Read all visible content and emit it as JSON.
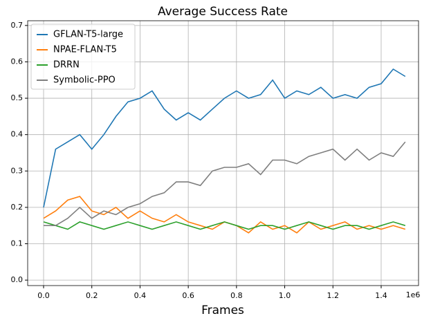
{
  "chart_data": {
    "type": "line",
    "title": "Average Success Rate",
    "x_label": "Frames",
    "x_offset_label": "1e6",
    "x": [
      0,
      0.05,
      0.1,
      0.15,
      0.2,
      0.25,
      0.3,
      0.35,
      0.4,
      0.45,
      0.5,
      0.55,
      0.6,
      0.65,
      0.7,
      0.75,
      0.8,
      0.85,
      0.9,
      0.95,
      1.0,
      1.05,
      1.1,
      1.15,
      1.2,
      1.25,
      1.3,
      1.35,
      1.4,
      1.45,
      1.5
    ],
    "series": [
      {
        "name": "GFLAN-T5-large",
        "color": "#1f77b4",
        "values": [
          0.2,
          0.36,
          0.38,
          0.4,
          0.36,
          0.4,
          0.45,
          0.49,
          0.5,
          0.52,
          0.47,
          0.44,
          0.46,
          0.44,
          0.47,
          0.5,
          0.52,
          0.5,
          0.51,
          0.55,
          0.5,
          0.52,
          0.51,
          0.53,
          0.5,
          0.51,
          0.5,
          0.53,
          0.54,
          0.58,
          0.56
        ]
      },
      {
        "name": "NPAE-FLAN-T5",
        "color": "#ff7f0e",
        "values": [
          0.17,
          0.19,
          0.22,
          0.23,
          0.19,
          0.18,
          0.2,
          0.17,
          0.19,
          0.17,
          0.16,
          0.18,
          0.16,
          0.15,
          0.14,
          0.16,
          0.15,
          0.13,
          0.16,
          0.14,
          0.15,
          0.13,
          0.16,
          0.14,
          0.15,
          0.16,
          0.14,
          0.15,
          0.14,
          0.15,
          0.14
        ]
      },
      {
        "name": "DRRN",
        "color": "#2ca02c",
        "values": [
          0.16,
          0.15,
          0.14,
          0.16,
          0.15,
          0.14,
          0.15,
          0.16,
          0.15,
          0.14,
          0.15,
          0.16,
          0.15,
          0.14,
          0.15,
          0.16,
          0.15,
          0.14,
          0.15,
          0.15,
          0.14,
          0.15,
          0.16,
          0.15,
          0.14,
          0.15,
          0.15,
          0.14,
          0.15,
          0.16,
          0.15
        ]
      },
      {
        "name": "Symbolic-PPO",
        "color": "#7f7f7f",
        "values": [
          0.15,
          0.15,
          0.17,
          0.2,
          0.17,
          0.19,
          0.18,
          0.2,
          0.21,
          0.23,
          0.24,
          0.27,
          0.27,
          0.26,
          0.3,
          0.31,
          0.31,
          0.32,
          0.29,
          0.33,
          0.33,
          0.32,
          0.34,
          0.35,
          0.36,
          0.33,
          0.36,
          0.33,
          0.35,
          0.34,
          0.38
        ]
      }
    ],
    "xlim": [
      -0.066,
      1.555
    ],
    "ylim": [
      -0.015,
      0.713
    ],
    "xticks": [
      {
        "value": 0,
        "label": "0.0"
      },
      0.2,
      0.4,
      0.6,
      0.8,
      {
        "value": 1,
        "label": "1.0"
      },
      1.2,
      1.4
    ],
    "yticks": [
      {
        "value": 0,
        "label": "0.0"
      },
      0.1,
      0.2,
      0.3,
      0.4,
      0.5,
      0.6,
      0.7
    ],
    "grid": true,
    "legend": "upper left"
  }
}
